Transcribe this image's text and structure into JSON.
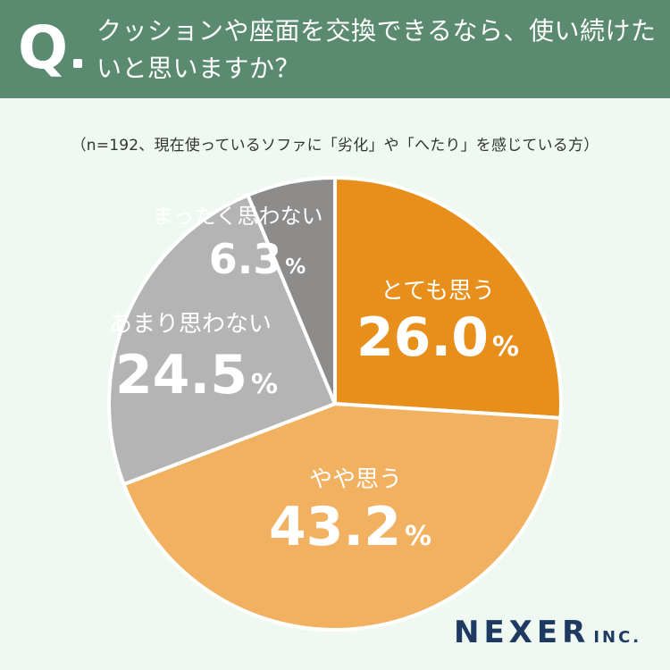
{
  "header": {
    "q_mark": "Q",
    "question": "クッションや座面を交換できるなら、使い続けたいと思いますか？"
  },
  "note": "（n=192、現在使っているソファに「劣化」や「へたり」を感じている方）",
  "chart_data": {
    "type": "pie",
    "title": "",
    "unit": "%",
    "slices": [
      {
        "label": "とても思う",
        "value": 26.0,
        "value_text": "26.0",
        "color": "#e88e1a",
        "text_color": "#ffffff"
      },
      {
        "label": "やや思う",
        "value": 43.2,
        "value_text": "43.2",
        "color": "#f1b160",
        "text_color": "#ffffff"
      },
      {
        "label": "あまり思わない",
        "value": 24.5,
        "value_text": "24.5",
        "color": "#b4b4b4",
        "text_color": "#ffffff"
      },
      {
        "label": "まったく思わない",
        "value": 6.3,
        "value_text": "6.3",
        "color": "#8e8b8b",
        "text_color": "#ffffff"
      }
    ]
  },
  "logo": {
    "main": "NEXER",
    "suffix": "INC."
  },
  "colors": {
    "header_bg": "#5a8a6f",
    "page_bg": "#eff9f1",
    "logo": "#1e3a62"
  }
}
